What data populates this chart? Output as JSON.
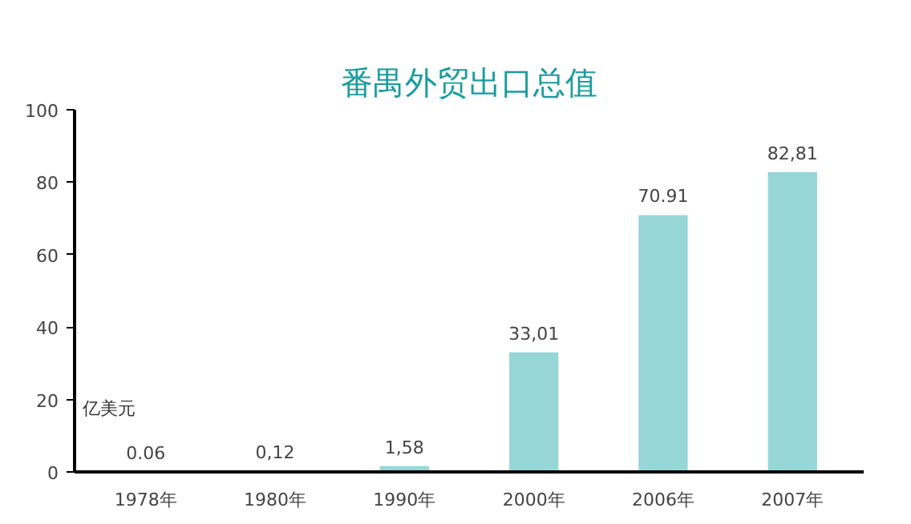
{
  "chart_data": {
    "type": "bar",
    "title": "番禺外贸出口总值",
    "ylabel": "亿美元",
    "categories": [
      "1978年",
      "1980年",
      "1990年",
      "2000年",
      "2006年",
      "2007年"
    ],
    "values": [
      0.06,
      0.12,
      1.58,
      33.01,
      70.91,
      82.81
    ],
    "value_labels": [
      "0.06",
      "0,12",
      "1,58",
      "33,01",
      "70.91",
      "82,81"
    ],
    "color": "#97d6d6",
    "ylim": [
      0,
      100
    ],
    "yticks": [
      0,
      20,
      40,
      60,
      80,
      100
    ],
    "grid": false
  }
}
